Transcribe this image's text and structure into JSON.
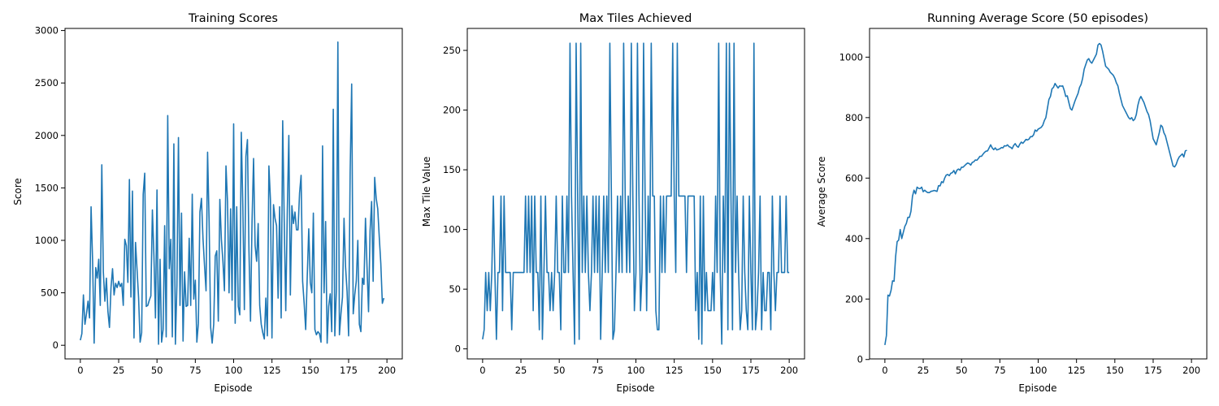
{
  "figure": {
    "background": "#ffffff",
    "line_color": "#1f77b4"
  },
  "chart_data": [
    {
      "type": "line",
      "title": "Training Scores",
      "xlabel": "Episode",
      "ylabel": "Score",
      "xlim": [
        -10,
        210
      ],
      "ylim": [
        -130,
        3020
      ],
      "xticks": [
        0,
        25,
        50,
        75,
        100,
        125,
        150,
        175,
        200
      ],
      "yticks": [
        0,
        500,
        1000,
        1500,
        2000,
        2500,
        3000
      ],
      "grid": false,
      "series": [
        {
          "name": "",
          "color": "#1f77b4",
          "x_start": 0,
          "values": [
            48,
            110,
            480,
            200,
            300,
            420,
            260,
            1320,
            800,
            20,
            740,
            640,
            820,
            380,
            1720,
            700,
            420,
            640,
            320,
            170,
            550,
            730,
            480,
            590,
            550,
            610,
            560,
            590,
            380,
            1010,
            950,
            600,
            1580,
            460,
            1470,
            70,
            980,
            720,
            450,
            30,
            120,
            1440,
            1640,
            370,
            380,
            430,
            470,
            1290,
            850,
            260,
            1480,
            10,
            820,
            30,
            150,
            1140,
            80,
            2190,
            730,
            1010,
            80,
            1920,
            10,
            570,
            1980,
            380,
            1260,
            40,
            700,
            370,
            380,
            1020,
            380,
            1440,
            440,
            620,
            30,
            210,
            1270,
            1400,
            1020,
            760,
            520,
            1840,
            1180,
            170,
            20,
            200,
            850,
            900,
            230,
            1390,
            1010,
            800,
            520,
            1710,
            1370,
            500,
            1300,
            430,
            2110,
            210,
            1320,
            370,
            290,
            2030,
            1320,
            340,
            1800,
            1960,
            900,
            230,
            1180,
            1780,
            950,
            800,
            1160,
            380,
            200,
            120,
            60,
            450,
            90,
            1710,
            1390,
            70,
            1340,
            1210,
            1140,
            450,
            1320,
            260,
            2140,
            1180,
            330,
            1280,
            2000,
            480,
            1330,
            1160,
            1270,
            1100,
            1100,
            1450,
            1620,
            610,
            400,
            150,
            650,
            1110,
            600,
            500,
            1260,
            150,
            100,
            130,
            110,
            30,
            1900,
            500,
            1180,
            20,
            370,
            490,
            130,
            2250,
            90,
            520,
            2890,
            100,
            300,
            460,
            1210,
            750,
            510,
            90,
            1650,
            2490,
            300,
            480,
            610,
            1000,
            200,
            130,
            640,
            580,
            1210,
            750,
            320,
            1090,
            1370,
            610,
            1600,
            1400,
            1300,
            1030,
            780,
            400,
            450
          ]
        }
      ]
    },
    {
      "type": "line",
      "title": "Max Tiles Achieved",
      "xlabel": "Episode",
      "ylabel": "Max Tile Value",
      "xlim": [
        -10,
        210
      ],
      "ylim": [
        -8.4,
        268.4
      ],
      "xticks": [
        0,
        25,
        50,
        75,
        100,
        125,
        150,
        175,
        200
      ],
      "yticks": [
        0,
        50,
        100,
        150,
        200,
        250
      ],
      "grid": false,
      "series": [
        {
          "name": "",
          "color": "#1f77b4",
          "x_start": 0,
          "values": [
            8,
            16,
            64,
            32,
            64,
            32,
            64,
            128,
            64,
            8,
            64,
            64,
            128,
            32,
            128,
            64,
            64,
            64,
            64,
            16,
            64,
            64,
            64,
            64,
            64,
            64,
            64,
            64,
            128,
            64,
            128,
            64,
            128,
            32,
            128,
            64,
            64,
            16,
            128,
            8,
            64,
            128,
            64,
            64,
            32,
            64,
            32,
            64,
            128,
            64,
            64,
            16,
            128,
            64,
            64,
            128,
            64,
            256,
            128,
            64,
            4,
            256,
            128,
            8,
            256,
            64,
            128,
            64,
            128,
            64,
            32,
            64,
            128,
            64,
            128,
            64,
            128,
            8,
            64,
            128,
            64,
            128,
            64,
            256,
            128,
            8,
            16,
            64,
            128,
            64,
            128,
            64,
            256,
            128,
            64,
            128,
            64,
            256,
            128,
            32,
            64,
            256,
            128,
            32,
            64,
            256,
            128,
            32,
            128,
            64,
            256,
            128,
            128,
            32,
            16,
            16,
            128,
            64,
            128,
            64,
            128,
            128,
            128,
            128,
            256,
            128,
            64,
            256,
            128,
            128,
            128,
            128,
            128,
            64,
            128,
            128,
            128,
            128,
            128,
            32,
            64,
            8,
            128,
            4,
            128,
            32,
            64,
            32,
            32,
            32,
            64,
            32,
            128,
            64,
            256,
            64,
            4,
            128,
            64,
            256,
            16,
            256,
            128,
            16,
            256,
            64,
            128,
            64,
            16,
            32,
            128,
            64,
            32,
            16,
            128,
            64,
            16,
            256,
            16,
            32,
            64,
            128,
            16,
            64,
            32,
            32,
            64,
            64,
            16,
            128,
            64,
            32,
            64,
            64,
            128,
            64,
            64,
            64,
            128,
            64,
            64
          ]
        }
      ]
    },
    {
      "type": "line",
      "title": "Running Average Score (50 episodes)",
      "xlabel": "Episode",
      "ylabel": "Average Score",
      "xlim": [
        -10,
        210
      ],
      "ylim": [
        2,
        1095
      ],
      "xticks": [
        0,
        25,
        50,
        75,
        100,
        125,
        150,
        175,
        200
      ],
      "yticks": [
        0,
        200,
        400,
        600,
        800,
        1000
      ],
      "grid": false,
      "series": [
        {
          "name": "",
          "color": "#1f77b4",
          "x_start": 0,
          "values": [
            48,
            79,
            213,
            210,
            228,
            260,
            259,
            340,
            390,
            395,
            430,
            400,
            420,
            440,
            450,
            470,
            470,
            490,
            540,
            560,
            548,
            570,
            566,
            565,
            570,
            555,
            560,
            555,
            552,
            552,
            556,
            557,
            559,
            558,
            556,
            575,
            574,
            588,
            585,
            600,
            610,
            612,
            608,
            616,
            618,
            625,
            614,
            626,
            630,
            626,
            636,
            636,
            641,
            646,
            650,
            648,
            643,
            652,
            654,
            660,
            659,
            665,
            672,
            672,
            679,
            685,
            689,
            690,
            700,
            710,
            700,
            694,
            700,
            693,
            695,
            697,
            701,
            700,
            707,
            706,
            710,
            704,
            702,
            697,
            708,
            714,
            706,
            702,
            712,
            719,
            715,
            721,
            728,
            726,
            729,
            737,
            737,
            743,
            759,
            755,
            762,
            765,
            768,
            775,
            790,
            800,
            830,
            860,
            870,
            895,
            900,
            913,
            905,
            898,
            905,
            904,
            905,
            890,
            870,
            872,
            850,
            830,
            825,
            840,
            855,
            868,
            880,
            900,
            910,
            930,
            960,
            975,
            990,
            995,
            985,
            980,
            990,
            1000,
            1010,
            1040,
            1045,
            1040,
            1020,
            995,
            970,
            965,
            960,
            950,
            945,
            940,
            930,
            915,
            905,
            880,
            860,
            840,
            830,
            820,
            810,
            800,
            795,
            800,
            790,
            795,
            810,
            840,
            860,
            870,
            860,
            850,
            835,
            820,
            810,
            790,
            760,
            730,
            720,
            710,
            730,
            750,
            775,
            770,
            750,
            740,
            720,
            700,
            680,
            660,
            640,
            637,
            645,
            660,
            670,
            675,
            680,
            670,
            690,
            692
          ]
        }
      ]
    }
  ]
}
